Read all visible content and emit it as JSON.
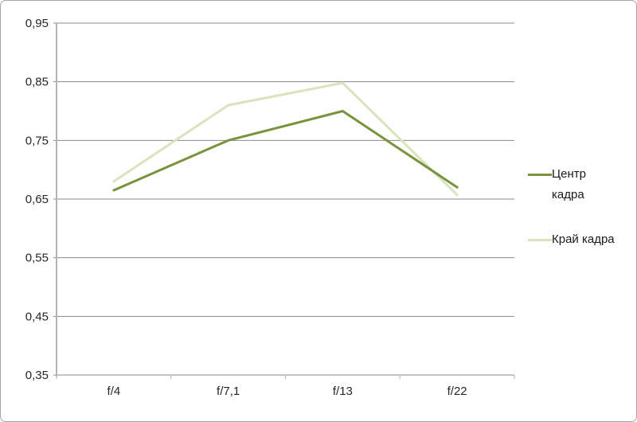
{
  "chart_data": {
    "type": "line",
    "title": "",
    "xlabel": "",
    "ylabel": "",
    "categories": [
      "f/4",
      "f/7,1",
      "f/13",
      "f/22"
    ],
    "series": [
      {
        "name": "Центр кадра",
        "color": "#77933C",
        "values": [
          0.665,
          0.75,
          0.8,
          0.67
        ]
      },
      {
        "name": "Край кадра",
        "color": "#D7E4BD",
        "values": [
          0.68,
          0.81,
          0.848,
          0.657
        ]
      }
    ],
    "ylim": [
      0.35,
      0.95
    ],
    "y_ticks": [
      {
        "value": 0.35,
        "label": "0,35"
      },
      {
        "value": 0.45,
        "label": "0,45"
      },
      {
        "value": 0.55,
        "label": "0,55"
      },
      {
        "value": 0.65,
        "label": "0,65"
      },
      {
        "value": 0.75,
        "label": "0,75"
      },
      {
        "value": 0.85,
        "label": "0,85"
      },
      {
        "value": 0.95,
        "label": "0,95"
      }
    ],
    "grid": true,
    "legend_position": "right",
    "draw_order_top_series": "Центр кадра"
  },
  "legend": {
    "items": [
      {
        "lines": [
          "Центр",
          "кадра"
        ]
      },
      {
        "lines": [
          "Край кадра"
        ]
      }
    ]
  },
  "colors": {
    "background": "#FFFFFF",
    "frame_border": "#A6A6A6",
    "gridline": "#898989",
    "axis_line": "#B3B3B3",
    "tick": "#B3B3B3",
    "text": "#262626"
  }
}
